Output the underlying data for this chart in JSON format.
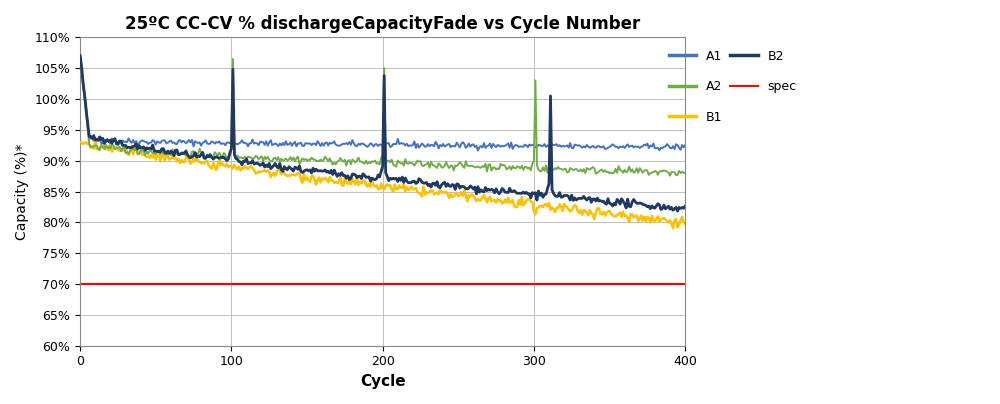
{
  "title": "25ºC CC-CV % dischargeCapacityFade vs Cycle Number",
  "xlabel": "Cycle",
  "ylabel": "Capacity (%)*",
  "xlim": [
    0,
    400
  ],
  "ylim": [
    0.6,
    1.1
  ],
  "yticks": [
    0.6,
    0.65,
    0.7,
    0.75,
    0.8,
    0.85,
    0.9,
    0.95,
    1.0,
    1.05,
    1.1
  ],
  "ytick_labels": [
    "60%",
    "65%",
    "70%",
    "75%",
    "80%",
    "85%",
    "90%",
    "95%",
    "100%",
    "105%",
    "110%"
  ],
  "xticks": [
    0,
    100,
    200,
    300,
    400
  ],
  "spec_value": 0.7,
  "colors": {
    "A1": "#4472C4",
    "A2": "#70AD47",
    "B1": "#FFC000",
    "B2": "#1F3864",
    "spec": "#FF0000",
    "background": "#FFFFFF",
    "grid": "#C0C0C0"
  },
  "figsize": [
    10.0,
    4.04
  ],
  "dpi": 100
}
